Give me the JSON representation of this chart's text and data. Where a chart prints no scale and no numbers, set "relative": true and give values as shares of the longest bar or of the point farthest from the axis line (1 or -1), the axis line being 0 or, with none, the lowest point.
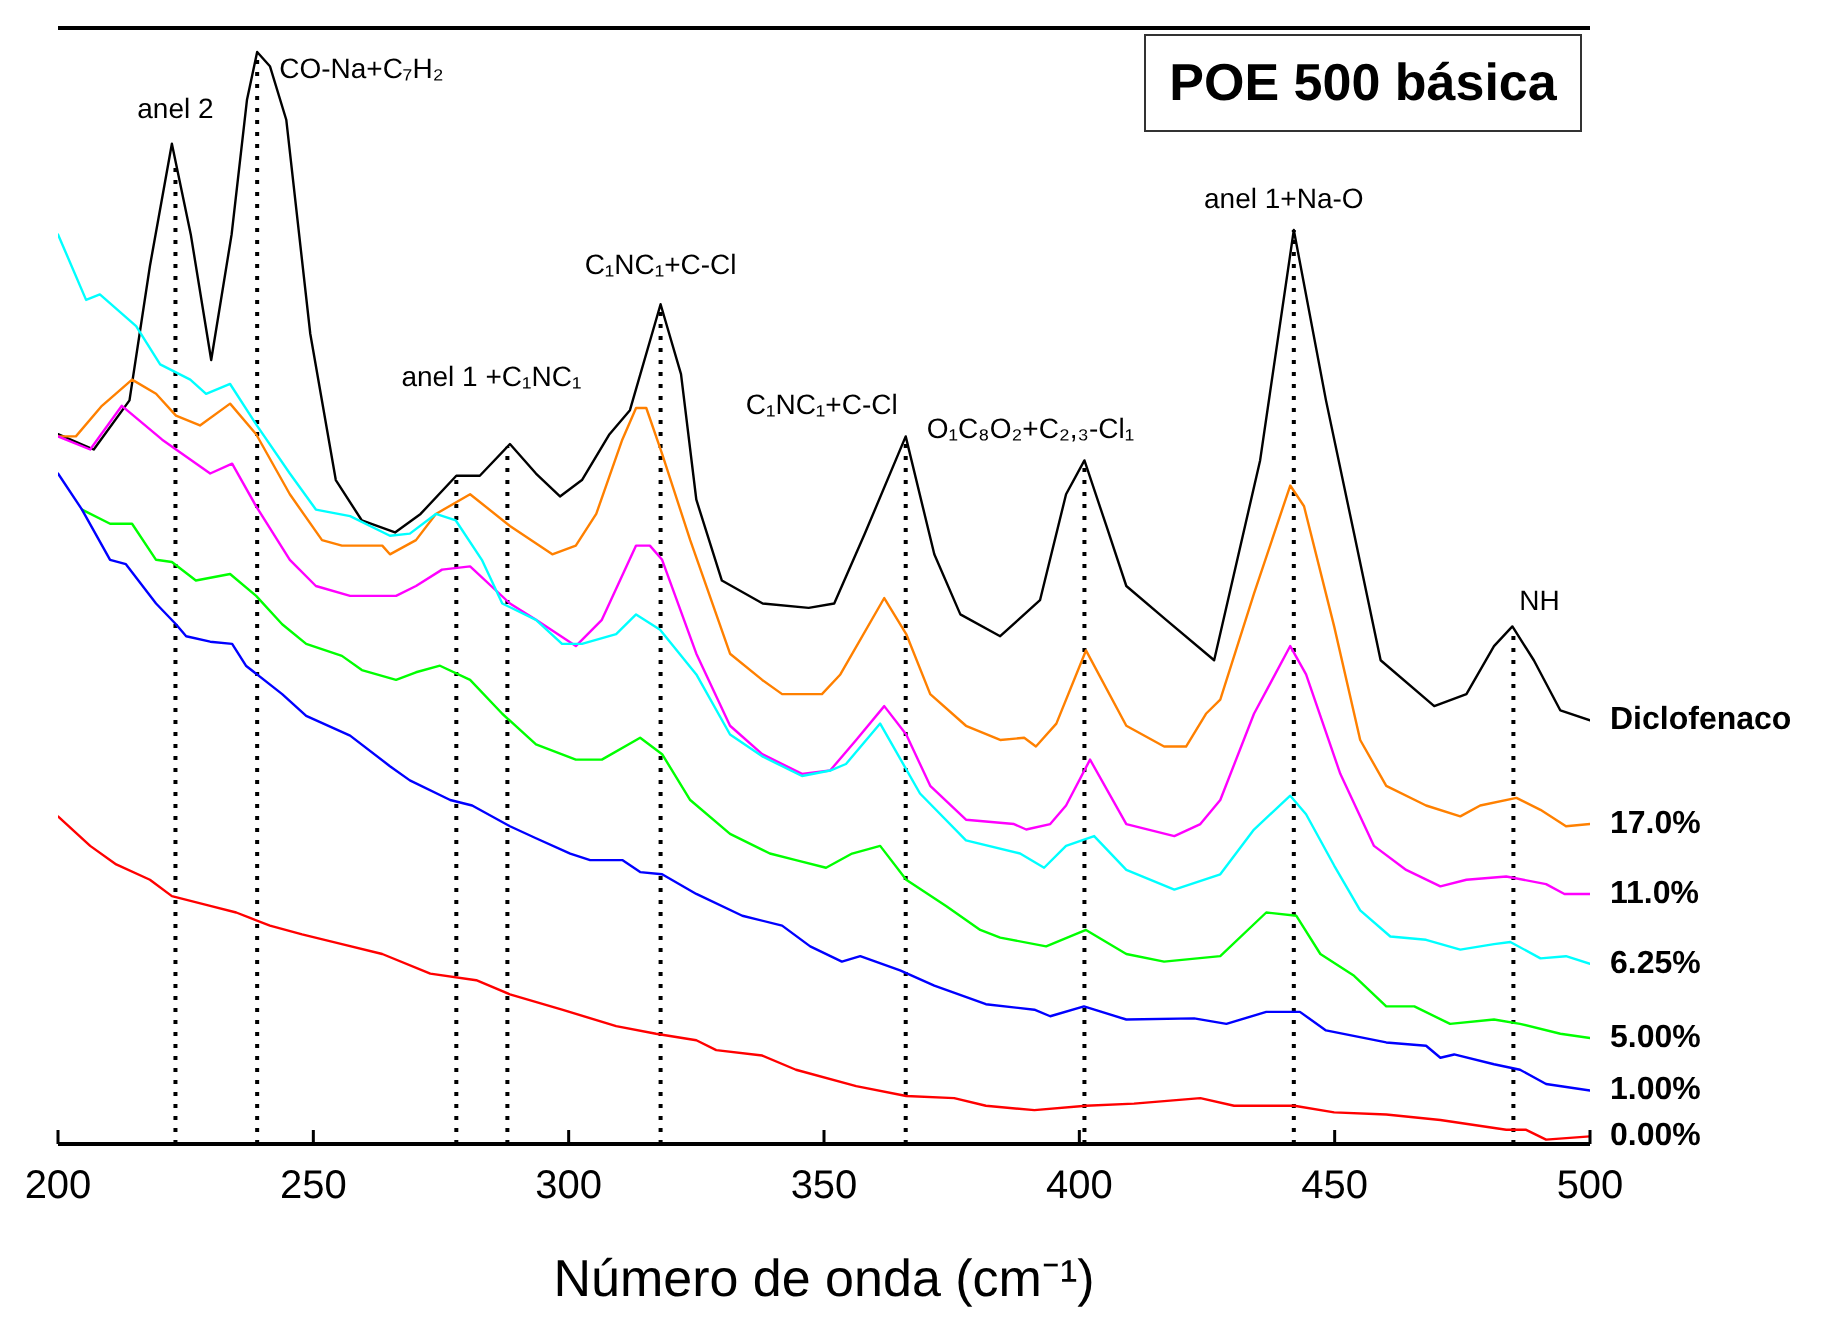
{
  "chart_data": {
    "type": "line",
    "title": "POE 500 básica",
    "xlabel": "Número de onda (cm⁻¹)",
    "relative": true,
    "xlim": [
      200,
      500
    ],
    "xticks": [
      200,
      250,
      300,
      350,
      400,
      450,
      500
    ],
    "line_style": "solid",
    "series": [
      {
        "name": "Diclofenaco",
        "color": "#000000",
        "x": [
          200,
          207,
          214,
          218,
          222.3,
          226,
          230,
          234,
          237,
          239,
          241.5,
          244.7,
          249.4,
          254.4,
          259.5,
          266,
          271,
          278,
          282.6,
          288.5,
          293.6,
          298.3,
          302.6,
          308,
          312,
          318,
          322,
          325,
          330,
          338,
          347,
          352,
          358,
          366,
          371.6,
          376.7,
          384.5,
          392.3,
          397.4,
          401,
          405.3,
          409.2,
          417,
          426.4,
          435.4,
          442,
          448.3,
          453.8,
          459,
          469.5,
          475.8,
          481.2,
          484.8,
          489,
          494.2,
          500
        ],
        "values": [
          0.65,
          0.636,
          0.681,
          0.804,
          0.916,
          0.833,
          0.718,
          0.833,
          0.956,
          1,
          0.987,
          0.938,
          0.742,
          0.608,
          0.571,
          0.56,
          0.577,
          0.612,
          0.612,
          0.641,
          0.614,
          0.593,
          0.608,
          0.65,
          0.672,
          0.769,
          0.705,
          0.59,
          0.516,
          0.495,
          0.491,
          0.495,
          0.559,
          0.648,
          0.54,
          0.485,
          0.465,
          0.498,
          0.595,
          0.626,
          0.566,
          0.511,
          0.48,
          0.443,
          0.626,
          0.837,
          0.681,
          0.559,
          0.443,
          0.401,
          0.412,
          0.456,
          0.474,
          0.443,
          0.397,
          0.388
        ]
      },
      {
        "name": "17.0%",
        "color": "#ff8000",
        "x": [
          200,
          203.5,
          208.6,
          214.5,
          219.2,
          223.1,
          227.8,
          233.7,
          238.8,
          245.4,
          251.7,
          255.6,
          263.5,
          265,
          270.1,
          274,
          280.7,
          288.5,
          296.8,
          301.4,
          305.4,
          310.5,
          313.2,
          315.2,
          318.3,
          323.8,
          331.6,
          337.9,
          341.8,
          349.6,
          353.2,
          361.8,
          366.1,
          370.8,
          377.8,
          384.5,
          389.2,
          391.5,
          395.5,
          401.3,
          409.2,
          416.6,
          420.9,
          424.8,
          427.6,
          434.2,
          441.3,
          444,
          449.9,
          455,
          460.1,
          467.9,
          474.6,
          478.5,
          485.6,
          490.3,
          495.3,
          500
        ],
        "values": [
          0.648,
          0.648,
          0.676,
          0.7,
          0.687,
          0.667,
          0.658,
          0.678,
          0.65,
          0.595,
          0.553,
          0.548,
          0.548,
          0.54,
          0.553,
          0.577,
          0.595,
          0.566,
          0.54,
          0.548,
          0.577,
          0.645,
          0.674,
          0.674,
          0.632,
          0.553,
          0.449,
          0.425,
          0.412,
          0.412,
          0.43,
          0.5,
          0.467,
          0.412,
          0.383,
          0.37,
          0.372,
          0.364,
          0.385,
          0.452,
          0.383,
          0.364,
          0.364,
          0.394,
          0.407,
          0.504,
          0.603,
          0.584,
          0.474,
          0.37,
          0.328,
          0.31,
          0.3,
          0.31,
          0.317,
          0.306,
          0.291,
          0.293
        ]
      },
      {
        "name": "11.0%",
        "color": "#ff00ff",
        "x": [
          200,
          206.3,
          212.5,
          220.4,
          229.8,
          234.1,
          238.8,
          245.4,
          250.5,
          257.2,
          266.2,
          270.1,
          275.2,
          280.7,
          288.5,
          293.6,
          301.4,
          306.5,
          313.2,
          315.9,
          318.3,
          325,
          331.6,
          337.9,
          345.7,
          351.2,
          356.3,
          361.8,
          366.1,
          370.8,
          377.8,
          387.2,
          389.6,
          394.3,
          397.4,
          402.1,
          409.2,
          418.6,
          423.7,
          427.6,
          434.2,
          441.3,
          444.4,
          451.1,
          457.7,
          464,
          470.7,
          475.8,
          483.6,
          491.4,
          495,
          500
        ],
        "values": [
          0.648,
          0.636,
          0.676,
          0.645,
          0.614,
          0.623,
          0.584,
          0.535,
          0.511,
          0.502,
          0.502,
          0.511,
          0.526,
          0.529,
          0.495,
          0.48,
          0.456,
          0.48,
          0.548,
          0.548,
          0.535,
          0.449,
          0.383,
          0.357,
          0.339,
          0.342,
          0.37,
          0.401,
          0.375,
          0.328,
          0.297,
          0.293,
          0.288,
          0.293,
          0.31,
          0.352,
          0.293,
          0.282,
          0.293,
          0.315,
          0.394,
          0.456,
          0.43,
          0.339,
          0.273,
          0.251,
          0.236,
          0.242,
          0.245,
          0.238,
          0.229,
          0.229
        ]
      },
      {
        "name": "6.25%",
        "color": "#00ffff",
        "x": [
          200,
          205.5,
          208.2,
          215.3,
          220,
          225.9,
          229,
          233.7,
          238.8,
          245.4,
          250.5,
          257.2,
          265,
          268.9,
          274,
          277.9,
          283,
          287,
          293.6,
          298.7,
          302.6,
          309.3,
          313.2,
          317.9,
          325,
          331.6,
          337.9,
          345.7,
          351.2,
          354.3,
          361,
          368.8,
          377.8,
          388.4,
          393.1,
          397.4,
          402.9,
          409.2,
          418.6,
          427.6,
          434.2,
          441.3,
          444.4,
          449.9,
          455,
          460.9,
          467.9,
          474.6,
          481.2,
          484.4,
          490.3,
          495.3,
          500
        ],
        "values": [
          0.833,
          0.773,
          0.778,
          0.749,
          0.714,
          0.7,
          0.687,
          0.696,
          0.659,
          0.614,
          0.581,
          0.575,
          0.557,
          0.559,
          0.577,
          0.571,
          0.535,
          0.495,
          0.48,
          0.458,
          0.458,
          0.467,
          0.485,
          0.471,
          0.43,
          0.375,
          0.355,
          0.337,
          0.342,
          0.348,
          0.385,
          0.321,
          0.278,
          0.266,
          0.253,
          0.273,
          0.282,
          0.251,
          0.233,
          0.247,
          0.288,
          0.319,
          0.302,
          0.255,
          0.214,
          0.19,
          0.187,
          0.178,
          0.183,
          0.185,
          0.17,
          0.172,
          0.165
        ]
      },
      {
        "name": "5.00%",
        "color": "#00ff00",
        "x": [
          204.7,
          210.2,
          214.5,
          219.2,
          222.3,
          227,
          233.7,
          238.8,
          243.9,
          248.6,
          255.6,
          259.5,
          266.2,
          270.1,
          274.8,
          280.7,
          287,
          293.6,
          301.4,
          306.5,
          314,
          318.3,
          323.8,
          331.6,
          339.4,
          344.5,
          350.4,
          355.5,
          361,
          366.1,
          373.9,
          380.6,
          384.5,
          393.5,
          401.3,
          409.2,
          416.6,
          427.6,
          436.6,
          442.5,
          447.2,
          453.8,
          460.1,
          465.6,
          472.6,
          481.2,
          486.3,
          494.2,
          500
        ],
        "values": [
          0.581,
          0.568,
          0.568,
          0.535,
          0.533,
          0.516,
          0.522,
          0.502,
          0.476,
          0.458,
          0.447,
          0.434,
          0.425,
          0.432,
          0.438,
          0.425,
          0.394,
          0.366,
          0.352,
          0.352,
          0.372,
          0.357,
          0.315,
          0.284,
          0.266,
          0.26,
          0.253,
          0.266,
          0.273,
          0.242,
          0.218,
          0.196,
          0.189,
          0.181,
          0.196,
          0.174,
          0.167,
          0.172,
          0.212,
          0.209,
          0.174,
          0.154,
          0.126,
          0.126,
          0.11,
          0.114,
          0.11,
          0.101,
          0.097
        ]
      },
      {
        "name": "1.00%",
        "color": "#0000ff",
        "x": [
          200,
          204.7,
          210.2,
          213.3,
          219.2,
          223.1,
          225.1,
          229.8,
          234.1,
          236.8,
          243.9,
          248.6,
          257.2,
          265,
          268.9,
          276.8,
          281.1,
          288.5,
          293.6,
          300.3,
          304.2,
          310.5,
          314,
          318.3,
          325,
          334,
          341.8,
          347.3,
          353.5,
          357.1,
          364.9,
          371.6,
          381.7,
          391.2,
          394.3,
          400.9,
          409.2,
          422.5,
          428.8,
          436.6,
          443.2,
          448.3,
          460.1,
          467.9,
          470.7,
          473.4,
          481.2,
          486.3,
          491.4,
          500
        ],
        "values": [
          0.614,
          0.581,
          0.535,
          0.531,
          0.495,
          0.476,
          0.465,
          0.46,
          0.458,
          0.438,
          0.412,
          0.392,
          0.374,
          0.346,
          0.333,
          0.315,
          0.31,
          0.291,
          0.28,
          0.266,
          0.26,
          0.26,
          0.249,
          0.247,
          0.229,
          0.209,
          0.2,
          0.181,
          0.167,
          0.172,
          0.159,
          0.145,
          0.128,
          0.123,
          0.117,
          0.126,
          0.114,
          0.115,
          0.11,
          0.121,
          0.121,
          0.104,
          0.093,
          0.09,
          0.079,
          0.082,
          0.073,
          0.068,
          0.055,
          0.049
        ]
      },
      {
        "name": "0.00%",
        "color": "#ff0000",
        "x": [
          200,
          206.3,
          211.4,
          218,
          222.3,
          229.8,
          234.9,
          237.6,
          241.5,
          247.8,
          255.6,
          263.5,
          272.9,
          281.9,
          288.5,
          298.7,
          309.3,
          317.1,
          325,
          328.9,
          337.9,
          344.5,
          356.3,
          366.1,
          375.5,
          381.7,
          391.2,
          401.3,
          410.7,
          423.7,
          430.3,
          442.1,
          449.9,
          460.1,
          470.7,
          483.6,
          487.5,
          491.4,
          500
        ],
        "values": [
          0.3,
          0.273,
          0.256,
          0.242,
          0.227,
          0.218,
          0.212,
          0.207,
          0.2,
          0.192,
          0.183,
          0.174,
          0.156,
          0.15,
          0.137,
          0.123,
          0.108,
          0.101,
          0.095,
          0.086,
          0.081,
          0.068,
          0.053,
          0.044,
          0.042,
          0.035,
          0.031,
          0.035,
          0.037,
          0.042,
          0.035,
          0.035,
          0.029,
          0.027,
          0.022,
          0.013,
          0.013,
          0.004,
          0.007
        ]
      }
    ],
    "ref_lines": [
      {
        "axis": "x",
        "value": 223,
        "color": "#000000",
        "line_style": "dotted"
      },
      {
        "axis": "x",
        "value": 239,
        "color": "#000000",
        "line_style": "dotted"
      },
      {
        "axis": "x",
        "value": 278,
        "color": "#000000",
        "line_style": "dotted"
      },
      {
        "axis": "x",
        "value": 288,
        "color": "#000000",
        "line_style": "dotted"
      },
      {
        "axis": "x",
        "value": 318,
        "color": "#000000",
        "line_style": "dotted"
      },
      {
        "axis": "x",
        "value": 366,
        "color": "#000000",
        "line_style": "dotted"
      },
      {
        "axis": "x",
        "value": 401,
        "color": "#000000",
        "line_style": "dotted"
      },
      {
        "axis": "x",
        "value": 442,
        "color": "#000000",
        "line_style": "dotted"
      },
      {
        "axis": "x",
        "value": 485,
        "color": "#000000",
        "line_style": "dotted"
      }
    ],
    "annotations": [
      {
        "text": "anel 2",
        "x": 223,
        "y": 0.916
      },
      {
        "text": "CO-Na+C₇H₂",
        "x": 239,
        "y": 1
      },
      {
        "text": "anel 1 +C₁NC₁",
        "x": 288,
        "y": 0.641
      },
      {
        "text": "C₁NC₁+C-Cl",
        "x": 318,
        "y": 0.769
      },
      {
        "text": "C₁NC₁+C-Cl",
        "x": 366,
        "y": 0.648
      },
      {
        "text": "O₁C₈O₂+C₂,₃-Cl₁",
        "x": 401,
        "y": 0.626
      },
      {
        "text": "anel 1+Na-O",
        "x": 442,
        "y": 0.837
      },
      {
        "text": "NH",
        "x": 485,
        "y": 0.474
      }
    ]
  }
}
